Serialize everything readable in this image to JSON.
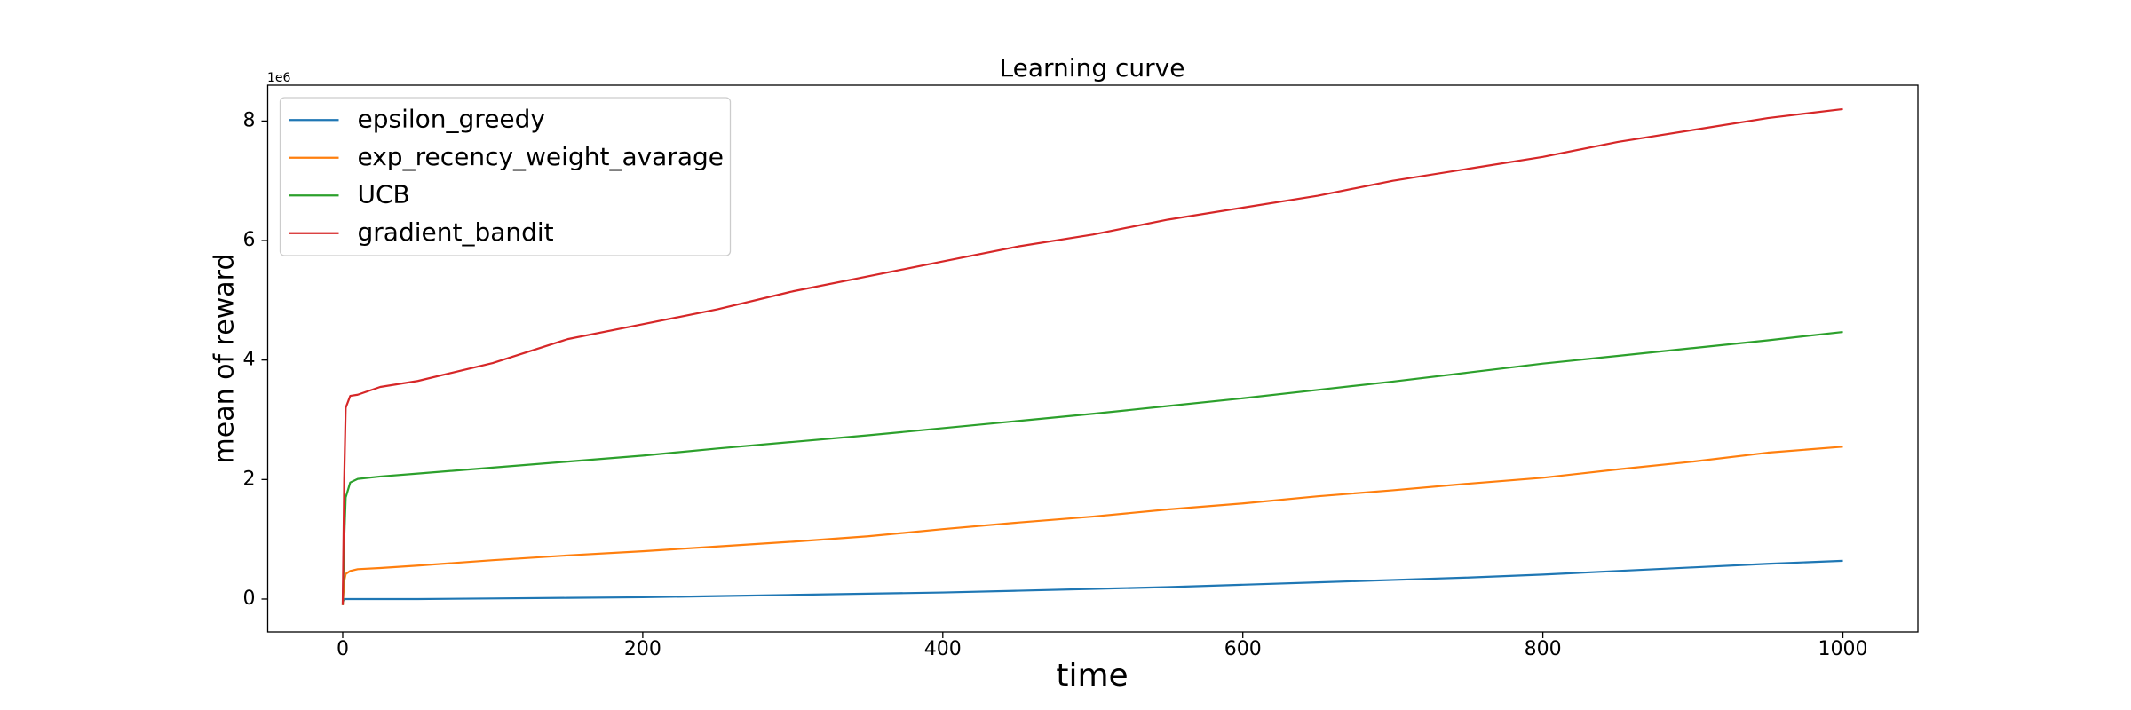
{
  "chart_data": {
    "type": "line",
    "title": "Learning curve",
    "x_label": "time",
    "y_label": "mean of reward",
    "y_offset_label": "1e6",
    "x": [
      0,
      1,
      2,
      5,
      10,
      25,
      50,
      100,
      150,
      200,
      250,
      300,
      350,
      400,
      450,
      500,
      550,
      600,
      650,
      700,
      750,
      800,
      850,
      900,
      950,
      1000
    ],
    "series": [
      {
        "name": "epsilon_greedy",
        "color": "#1f77b4",
        "values": [
          -0.05,
          0,
          0,
          0,
          0,
          0,
          0,
          0.01,
          0.02,
          0.03,
          0.05,
          0.07,
          0.09,
          0.11,
          0.14,
          0.17,
          0.2,
          0.24,
          0.28,
          0.32,
          0.36,
          0.41,
          0.47,
          0.53,
          0.59,
          0.64
        ]
      },
      {
        "name": "exp_recency_weight_avarage",
        "color": "#ff7f0e",
        "values": [
          -0.1,
          0.3,
          0.42,
          0.47,
          0.5,
          0.52,
          0.56,
          0.65,
          0.73,
          0.8,
          0.88,
          0.96,
          1.05,
          1.17,
          1.28,
          1.38,
          1.5,
          1.6,
          1.72,
          1.82,
          1.93,
          2.03,
          2.17,
          2.3,
          2.45,
          2.55
        ]
      },
      {
        "name": "UCB",
        "color": "#2ca02c",
        "values": [
          -0.1,
          1.0,
          1.7,
          1.95,
          2.01,
          2.05,
          2.1,
          2.2,
          2.3,
          2.4,
          2.52,
          2.63,
          2.74,
          2.86,
          2.98,
          3.1,
          3.23,
          3.36,
          3.5,
          3.64,
          3.79,
          3.94,
          4.07,
          4.2,
          4.33,
          4.47
        ]
      },
      {
        "name": "gradient_bandit",
        "color": "#d62728",
        "values": [
          -0.1,
          2.0,
          3.2,
          3.4,
          3.42,
          3.55,
          3.65,
          3.95,
          4.35,
          4.6,
          4.85,
          5.15,
          5.4,
          5.65,
          5.9,
          6.1,
          6.35,
          6.55,
          6.75,
          7.0,
          7.2,
          7.4,
          7.65,
          7.85,
          8.05,
          8.2
        ]
      }
    ],
    "xlim": [
      -50,
      1050
    ],
    "ylim": [
      -0.55,
      8.6
    ],
    "xticks": [
      0,
      200,
      400,
      600,
      800,
      1000
    ],
    "yticks": [
      0,
      2,
      4,
      6,
      8
    ],
    "grid": false,
    "legend": "upper left"
  }
}
